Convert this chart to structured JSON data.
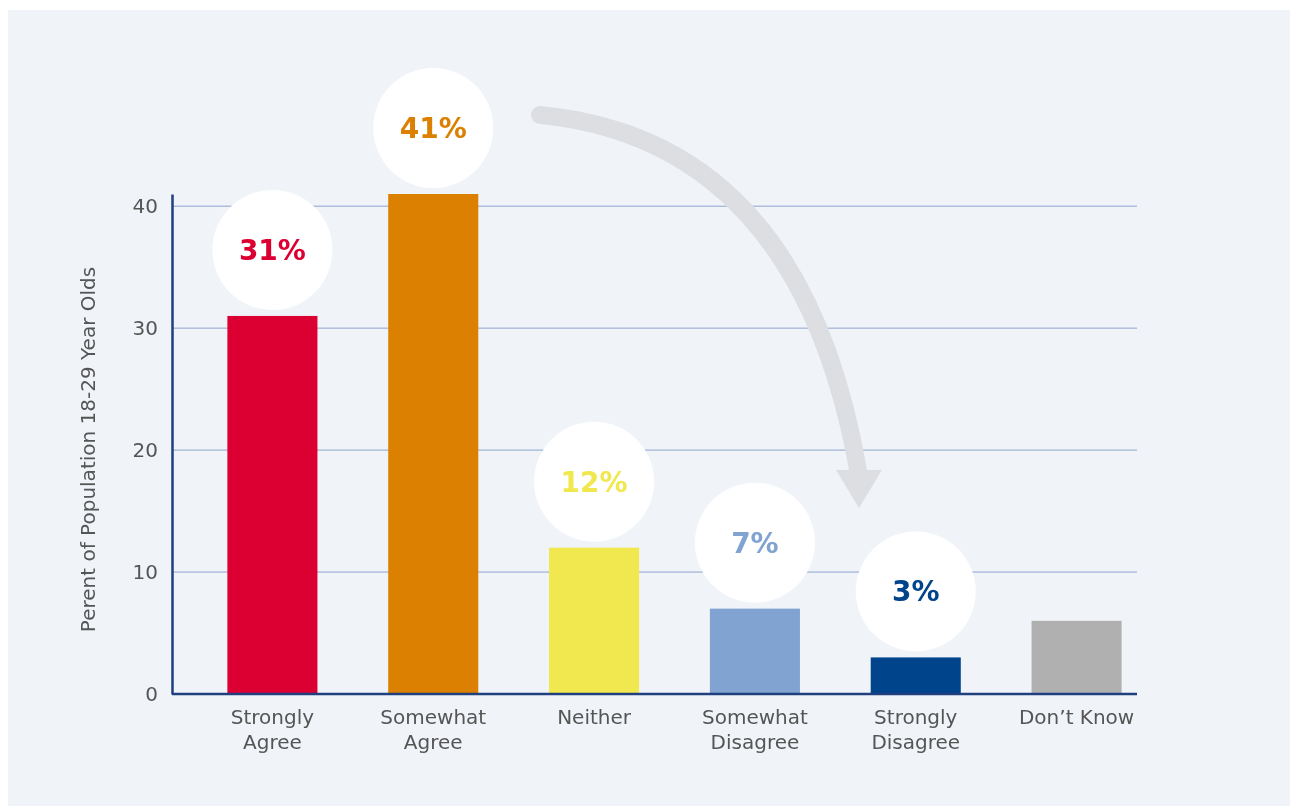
{
  "chart_data": {
    "type": "bar",
    "ylabel": "Perent of Population 18-29 Year Olds",
    "categories": [
      "Strongly Agree",
      "Somewhat Agree",
      "Neither",
      "Somewhat Disagree",
      "Strongly Disagree",
      "Don’t Know"
    ],
    "values": [
      31,
      41,
      12,
      7,
      3,
      6
    ],
    "colors": [
      "#dc0032",
      "#db8000",
      "#f0e84e",
      "#80a3d1",
      "#00448b",
      "#b0b0b0"
    ],
    "value_labels": [
      "31%",
      "41%",
      "12%",
      "7%",
      "3%",
      null
    ],
    "ylim": [
      0,
      41
    ],
    "yticks": [
      0,
      10,
      20,
      30,
      40
    ],
    "grid": "y"
  }
}
